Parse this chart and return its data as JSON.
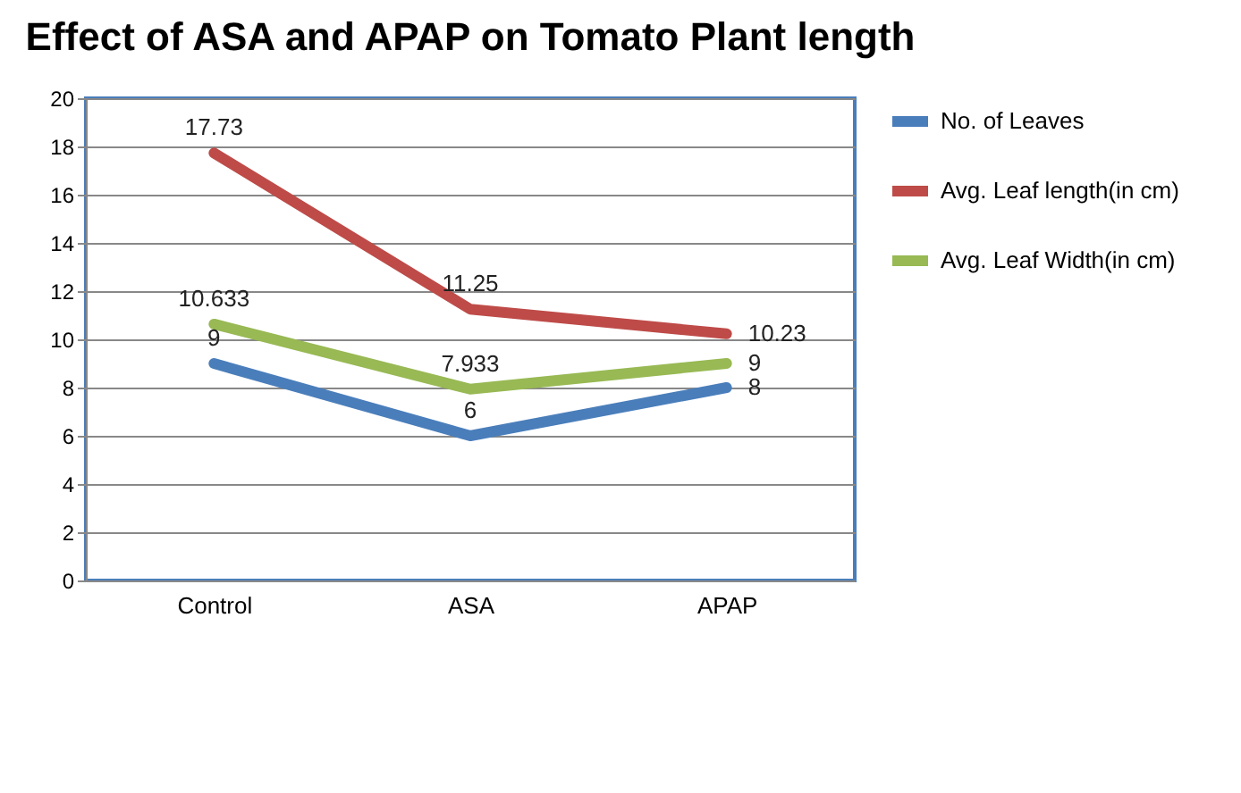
{
  "chart_data": {
    "type": "line",
    "title": "Effect of ASA and APAP on Tomato Plant length",
    "categories": [
      "Control",
      "ASA",
      "APAP"
    ],
    "series": [
      {
        "name": "No. of Leaves",
        "color": "#4a7ebb",
        "values": [
          9,
          6,
          8
        ]
      },
      {
        "name": "Avg. Leaf length(in cm)",
        "color": "#be4b48",
        "values": [
          17.73,
          11.25,
          10.23
        ]
      },
      {
        "name": "Avg. Leaf Width(in cm)",
        "color": "#98b954",
        "values": [
          10.633,
          7.933,
          9
        ]
      }
    ],
    "ylim": [
      0,
      20
    ],
    "yticks": [
      0,
      2,
      4,
      6,
      8,
      10,
      12,
      14,
      16,
      18,
      20
    ],
    "grid": "y",
    "legend": "right",
    "data_labels": true,
    "marker": "none",
    "line_style": "solid"
  }
}
